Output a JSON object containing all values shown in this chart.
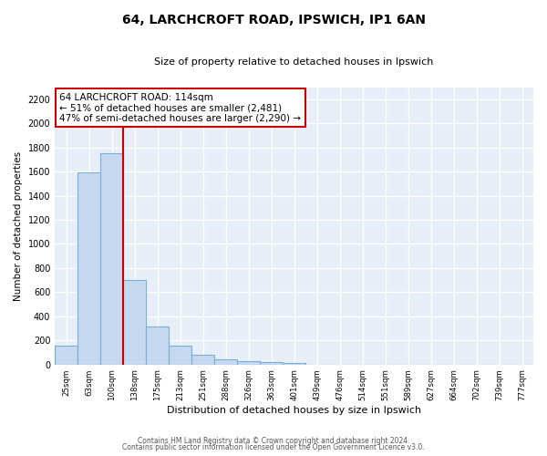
{
  "title": "64, LARCHCROFT ROAD, IPSWICH, IP1 6AN",
  "subtitle": "Size of property relative to detached houses in Ipswich",
  "xlabel": "Distribution of detached houses by size in Ipswich",
  "ylabel": "Number of detached properties",
  "bar_labels": [
    "25sqm",
    "63sqm",
    "100sqm",
    "138sqm",
    "175sqm",
    "213sqm",
    "251sqm",
    "288sqm",
    "326sqm",
    "363sqm",
    "401sqm",
    "439sqm",
    "476sqm",
    "514sqm",
    "551sqm",
    "589sqm",
    "627sqm",
    "664sqm",
    "702sqm",
    "739sqm",
    "777sqm"
  ],
  "bar_values": [
    160,
    1590,
    1755,
    700,
    315,
    160,
    80,
    45,
    25,
    20,
    15,
    0,
    0,
    0,
    0,
    0,
    0,
    0,
    0,
    0,
    0
  ],
  "bar_color": "#c5d8f0",
  "bar_edge_color": "#7aafd4",
  "vline_x": 2.5,
  "vline_color": "#cc0000",
  "annotation_text": "64 LARCHCROFT ROAD: 114sqm\n← 51% of detached houses are smaller (2,481)\n47% of semi-detached houses are larger (2,290) →",
  "annotation_box_color": "#ffffff",
  "annotation_box_edge": "#cc0000",
  "ylim": [
    0,
    2300
  ],
  "yticks": [
    0,
    200,
    400,
    600,
    800,
    1000,
    1200,
    1400,
    1600,
    1800,
    2000,
    2200
  ],
  "footer_line1": "Contains HM Land Registry data © Crown copyright and database right 2024.",
  "footer_line2": "Contains public sector information licensed under the Open Government Licence v3.0.",
  "plot_bg_color": "#e8eef8",
  "fig_bg_color": "#ffffff",
  "grid_color": "#ffffff"
}
